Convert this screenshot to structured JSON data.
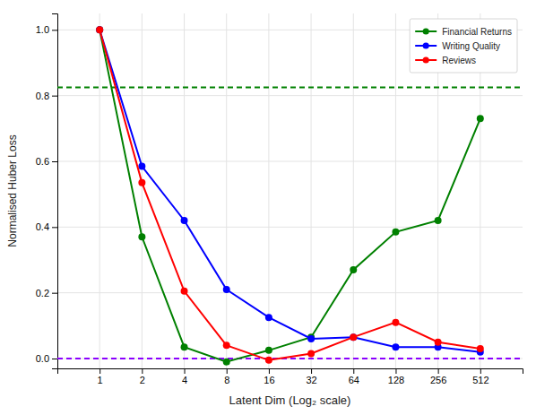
{
  "chart_data": {
    "type": "line",
    "x_label": "Latent Dim (Log₂ scale)",
    "y_label": "Normalised Huber Loss",
    "x": [
      1,
      2,
      4,
      8,
      16,
      32,
      64,
      128,
      256,
      512
    ],
    "series": [
      {
        "name": "Financial Returns",
        "color": "#008000",
        "marker": "circle",
        "values": [
          1.0,
          0.37,
          0.035,
          -0.01,
          0.025,
          0.065,
          0.27,
          0.385,
          0.42,
          0.73
        ]
      },
      {
        "name": "Writing Quality",
        "color": "#0000ff",
        "marker": "circle",
        "values": [
          1.0,
          0.585,
          0.42,
          0.21,
          0.125,
          0.06,
          0.065,
          0.035,
          0.035,
          0.02
        ]
      },
      {
        "name": "Reviews",
        "color": "#ff0000",
        "marker": "circle",
        "values": [
          1.0,
          0.535,
          0.205,
          0.04,
          -0.005,
          0.015,
          0.065,
          0.11,
          0.05,
          0.03
        ]
      }
    ],
    "reference_lines": [
      {
        "value": 0.825,
        "color": "#008000",
        "line_style": "dashed"
      },
      {
        "value": 0.0,
        "color": "#8B00FF",
        "line_style": "dashed"
      }
    ],
    "log": "x",
    "xlim": [
      0.5,
      1024
    ],
    "xticks": [
      1,
      2,
      4,
      8,
      16,
      32,
      64,
      128,
      256,
      512
    ],
    "ylim": [
      -0.03,
      1.05
    ],
    "yticks": [
      {
        "value": 0.0,
        "label": "0.0"
      },
      0.2,
      0.4,
      0.6,
      0.8,
      {
        "value": 1.0,
        "label": "1.0"
      }
    ],
    "grid": true,
    "legend": "upper right"
  }
}
